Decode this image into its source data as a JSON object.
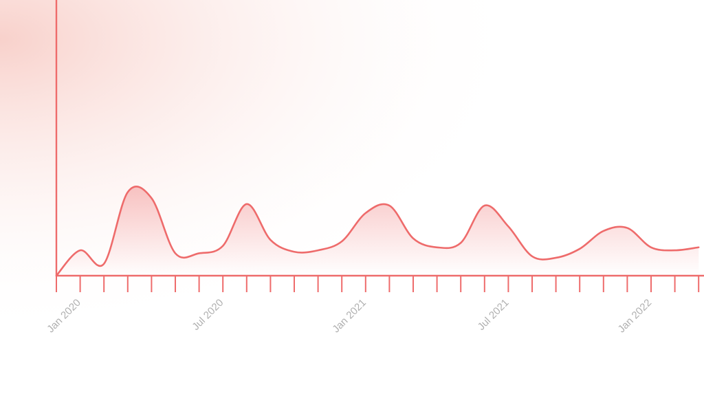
{
  "chart_data": {
    "type": "area",
    "title": "",
    "xlabel": "",
    "ylabel": "",
    "grid": false,
    "colors": {
      "line": "#ee6b6b",
      "fill": "#ee6b6b",
      "axis": "#ee6b6b",
      "tick_label": "#b0b0b0",
      "background_glow": "#fbe3df"
    },
    "x_tick_labels": [
      "Jan 2020",
      "Jul 2020",
      "Jan 2021",
      "Jul 2021",
      "Jan 2022"
    ],
    "x_tick_dates": [
      "2020-01-01",
      "2020-07-01",
      "2021-01-01",
      "2021-07-01",
      "2022-01-01"
    ],
    "minor_ticks_per_month": 1,
    "xlim": [
      "2020-01-01",
      "2022-04-01"
    ],
    "ylim": [
      0,
      1
    ],
    "series": [
      {
        "x": [
          "2020-01-01",
          "2020-02-01",
          "2020-03-01",
          "2020-04-01",
          "2020-05-01",
          "2020-06-01",
          "2020-07-01",
          "2020-08-01",
          "2020-09-01",
          "2020-10-01",
          "2020-11-01",
          "2020-12-01",
          "2021-01-01",
          "2021-02-01",
          "2021-03-01",
          "2021-04-01",
          "2021-05-01",
          "2021-06-01",
          "2021-07-01",
          "2021-08-01",
          "2021-09-01",
          "2021-10-01",
          "2021-11-01",
          "2021-12-01",
          "2022-01-01",
          "2022-02-01",
          "2022-03-01",
          "2022-04-01"
        ],
        "values": [
          0.0,
          0.17,
          0.08,
          0.56,
          0.52,
          0.15,
          0.15,
          0.2,
          0.48,
          0.24,
          0.16,
          0.17,
          0.23,
          0.42,
          0.47,
          0.25,
          0.19,
          0.22,
          0.47,
          0.33,
          0.13,
          0.12,
          0.18,
          0.3,
          0.32,
          0.19,
          0.17,
          0.19
        ]
      }
    ]
  }
}
